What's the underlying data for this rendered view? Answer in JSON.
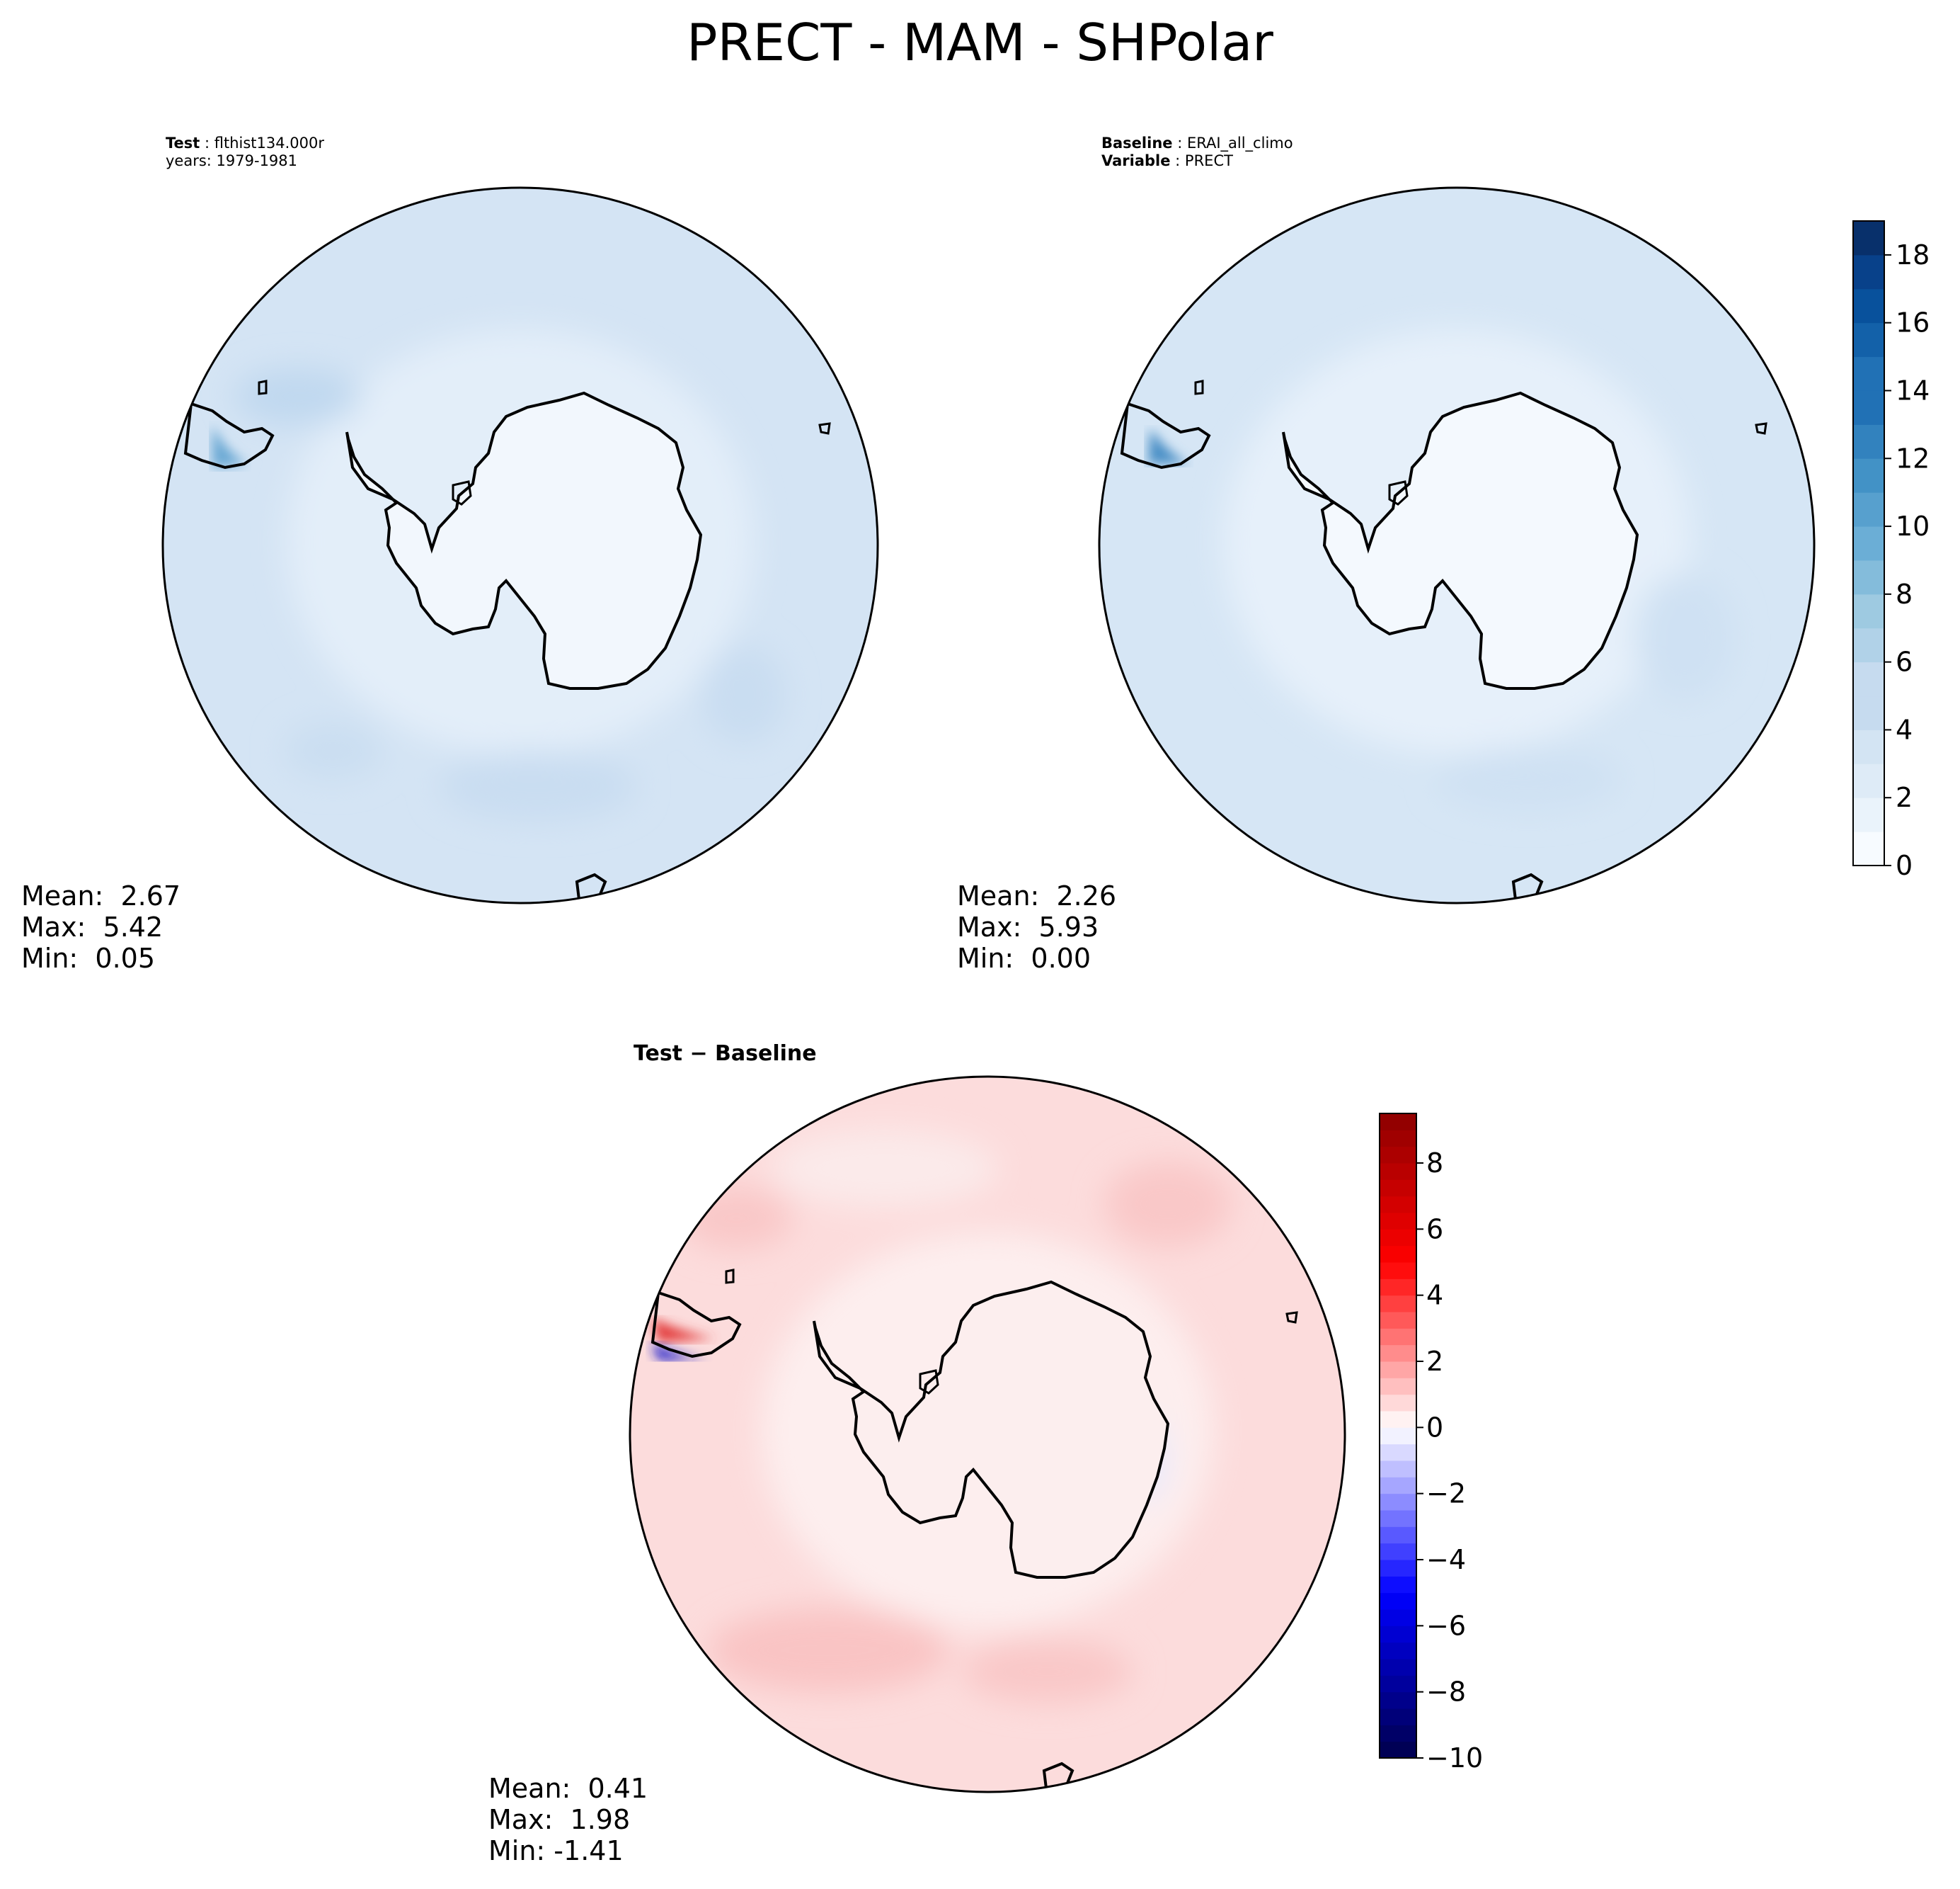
{
  "figure_title": "PRECT - MAM - SHPolar",
  "panels": {
    "test": {
      "header_line1_key": "Test",
      "header_line1_sep": " : ",
      "header_line1_value": "flthist134.000r",
      "header_line2": "years: 1979-1981",
      "mean_label": "Mean:  2.67",
      "max_label": "Max:  5.42",
      "min_label": "Min:  0.05"
    },
    "baseline": {
      "header_line1_key": "Baseline",
      "header_line1_sep": " : ",
      "header_line1_value": "ERAI_all_climo",
      "header_line2_key": "Variable",
      "header_line2_sep": " : ",
      "header_line2_value": "PRECT",
      "mean_label": "Mean:  2.26",
      "max_label": "Max:  5.93",
      "min_label": "Min:  0.00"
    },
    "diff": {
      "title": "Test − Baseline",
      "mean_label": "Mean:  0.41",
      "max_label": "Max:  1.98",
      "min_label": "Min: -1.41"
    }
  },
  "chart_data": [
    {
      "type": "heatmap",
      "name": "test",
      "projection": "south-polar-stereographic",
      "stats": {
        "mean": 2.67,
        "max": 5.42,
        "min": 0.05
      },
      "colormap": "Blues",
      "colorbar": {
        "shared_with": "baseline"
      }
    },
    {
      "type": "heatmap",
      "name": "baseline",
      "projection": "south-polar-stereographic",
      "stats": {
        "mean": 2.26,
        "max": 5.93,
        "min": 0.0
      },
      "colormap": "Blues",
      "colorbar": {
        "range": [
          0,
          19
        ],
        "levels": [
          0,
          1,
          2,
          3,
          4,
          5,
          6,
          7,
          8,
          9,
          10,
          11,
          12,
          13,
          14,
          15,
          16,
          17,
          18,
          19
        ],
        "ticks": [
          0,
          2,
          4,
          6,
          8,
          10,
          12,
          14,
          16,
          18
        ],
        "tick_labels": [
          "0",
          "2",
          "4",
          "6",
          "8",
          "10",
          "12",
          "14",
          "16",
          "18"
        ]
      }
    },
    {
      "type": "heatmap",
      "name": "diff",
      "projection": "south-polar-stereographic",
      "stats": {
        "mean": 0.41,
        "max": 1.98,
        "min": -1.41
      },
      "colormap": "seismic",
      "colorbar": {
        "range": [
          -10,
          9.5
        ],
        "ticks": [
          -10,
          -8,
          -6,
          -4,
          -2,
          0,
          2,
          4,
          6,
          8
        ],
        "tick_labels": [
          "−10",
          "−8",
          "−6",
          "−4",
          "−2",
          "0",
          "2",
          "4",
          "6",
          "8"
        ]
      }
    }
  ],
  "colors": {
    "blues": [
      "#f7fbff",
      "#eaf3fb",
      "#deebf7",
      "#d3e4f3",
      "#c6dbef",
      "#b1d2e8",
      "#9ecae1",
      "#84bcdb",
      "#6baed6",
      "#57a0ce",
      "#4292c6",
      "#3282be",
      "#2171b5",
      "#1361a9",
      "#08519c",
      "#08418a",
      "#08306b"
    ],
    "seismic_low": "#00004c",
    "seismic_mid": "#ffffff",
    "seismic_high": "#800000",
    "coast": "#000000"
  }
}
